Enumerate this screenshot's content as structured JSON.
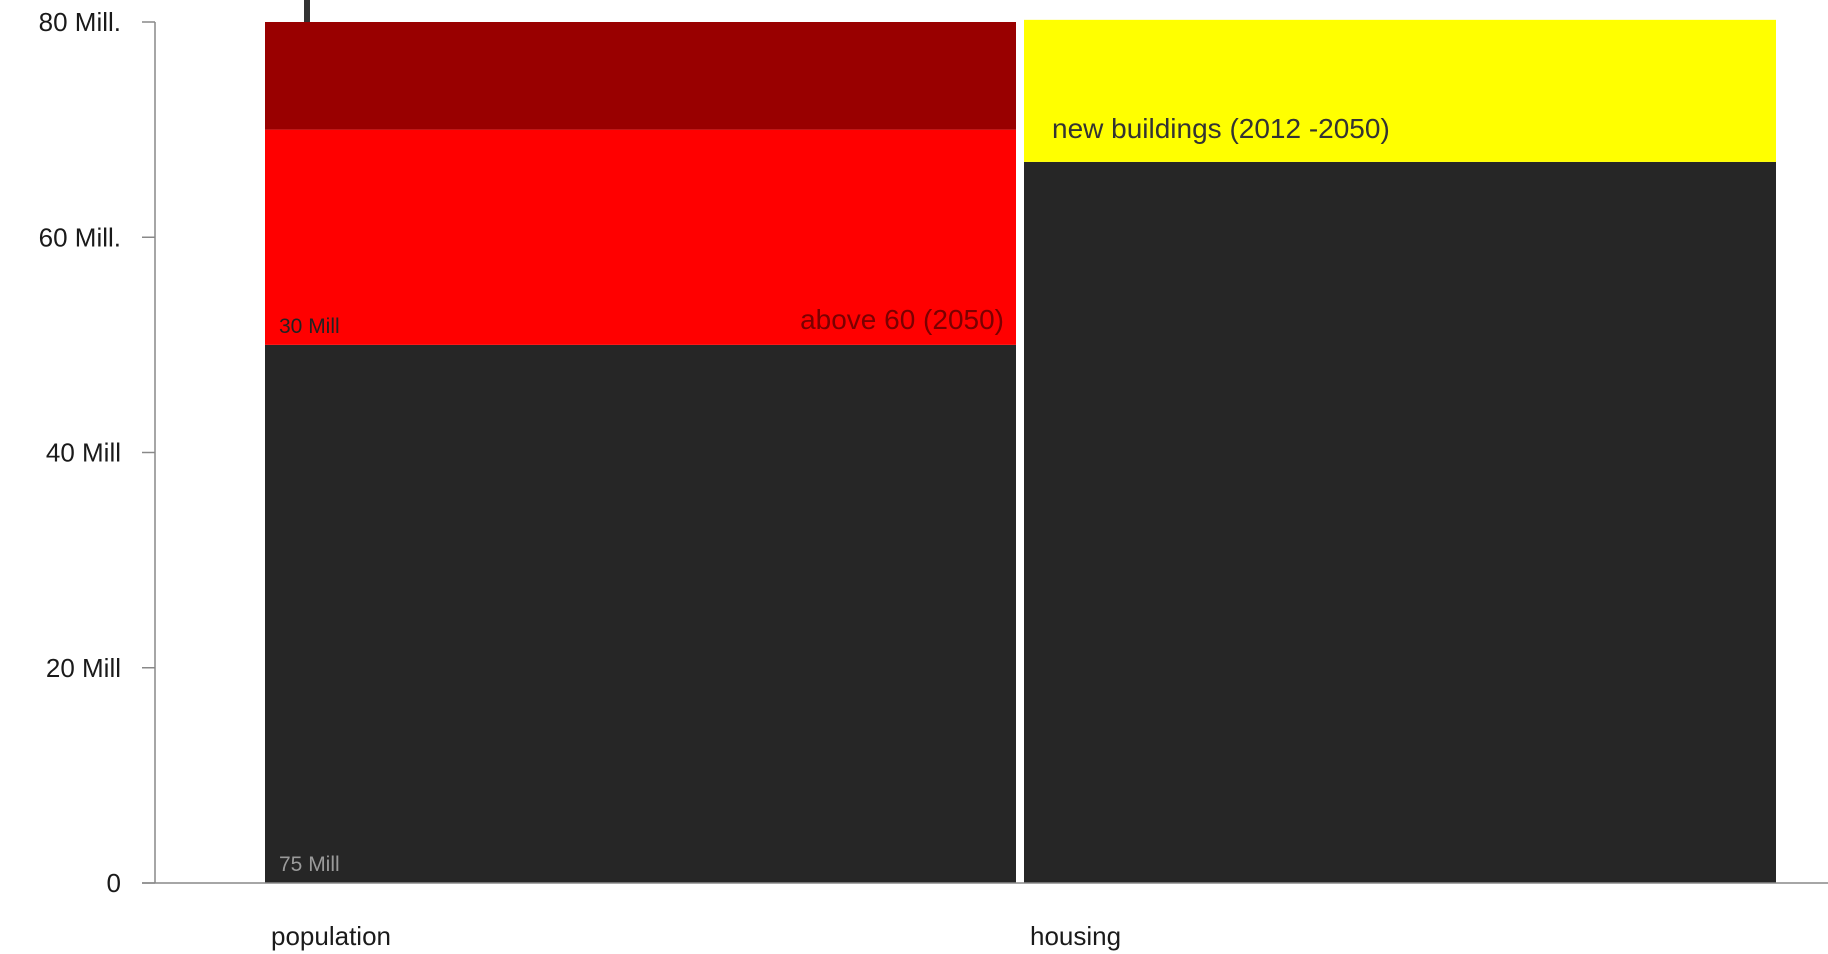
{
  "chart_data": {
    "type": "bar",
    "stacked": true,
    "categories": [
      "population",
      "housing"
    ],
    "ylim": [
      0,
      80
    ],
    "yticks": [
      {
        "value": 0,
        "label": "0"
      },
      {
        "value": 20,
        "label": "20 Mill"
      },
      {
        "value": 40,
        "label": "40 Mill"
      },
      {
        "value": 60,
        "label": "60 Mill."
      },
      {
        "value": 80,
        "label": "80 Mill."
      }
    ],
    "bars": [
      {
        "category": "population",
        "segments": [
          {
            "from": 0,
            "to": 50,
            "color": "#262626",
            "label": "75 Mill",
            "label_color": "#9a9a9a",
            "label_pos": "bottom-left",
            "label_size": "small"
          },
          {
            "from": 50,
            "to": 70,
            "color": "#ff0000",
            "label": "above 60  (2050)",
            "label_color": "#7a0000",
            "label_pos": "bottom-right",
            "label_size": "big",
            "label2": "30 Mill",
            "label2_color": "#222222",
            "label2_pos": "bottom-left",
            "label2_size": "small"
          },
          {
            "from": 70,
            "to": 80,
            "color": "#990000"
          }
        ]
      },
      {
        "category": "housing",
        "segments": [
          {
            "from": 0,
            "to": 67,
            "color": "#262626"
          },
          {
            "from": 67,
            "to": 80.2,
            "color": "#ffff00",
            "label": "new  buildings (2012 -2050)",
            "label_color": "#333333",
            "label_pos": "bottom-left-raised",
            "label_size": "big"
          }
        ]
      }
    ],
    "grid": false,
    "legend": "none",
    "title": "",
    "xlabel": "",
    "ylabel": ""
  }
}
